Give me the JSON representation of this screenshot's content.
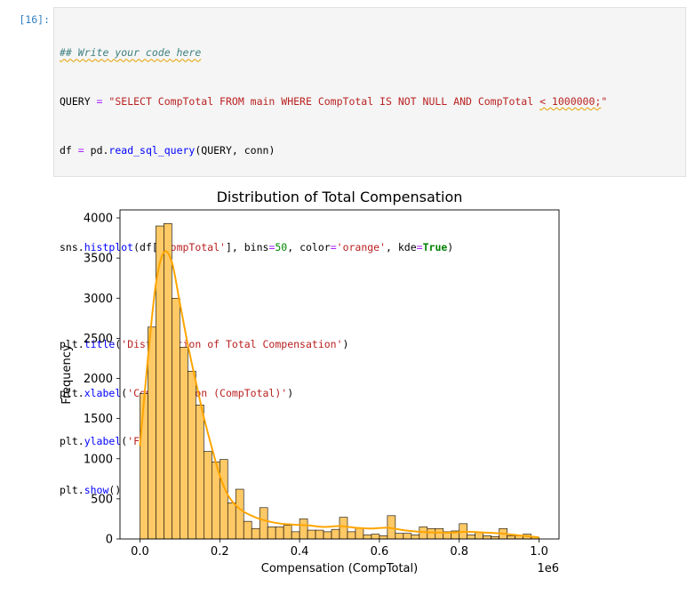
{
  "cell": {
    "prompt": "[16]:",
    "code_lines": [
      "## Write your code here",
      "QUERY = \"SELECT CompTotal FROM main WHERE CompTotal IS NOT NULL AND CompTotal < 1000000;\"",
      "df = pd.read_sql_query(QUERY, conn)",
      "",
      "sns.histplot(df['CompTotal'], bins=50, color='orange', kde=True)",
      "",
      "plt.title('Distribution of Total Compensation')",
      "plt.xlabel('Compensation (CompTotal)')",
      "plt.ylabel('Frequency')",
      "plt.show()"
    ]
  },
  "chart_data": {
    "type": "bar",
    "title": "Distribution of Total Compensation",
    "xlabel": "Compensation (CompTotal)",
    "ylabel": "Frequency",
    "x_offset_label": "1e6",
    "xlim": [
      -0.05,
      1.05
    ],
    "ylim": [
      0,
      4100
    ],
    "x_ticks": [
      0.0,
      0.2,
      0.4,
      0.6,
      0.8,
      1.0
    ],
    "x_tick_labels": [
      "0.0",
      "0.2",
      "0.4",
      "0.6",
      "0.8",
      "1.0"
    ],
    "y_ticks": [
      0,
      500,
      1000,
      1500,
      2000,
      2500,
      3000,
      3500,
      4000
    ],
    "y_tick_labels": [
      "0",
      "500",
      "1000",
      "1500",
      "2000",
      "2500",
      "3000",
      "3500",
      "4000"
    ],
    "bin_start": 0.0,
    "bin_width": 0.02,
    "values": [
      1810,
      2640,
      3900,
      3930,
      3000,
      2390,
      2090,
      1670,
      1090,
      960,
      990,
      450,
      620,
      220,
      130,
      390,
      150,
      150,
      170,
      90,
      250,
      110,
      110,
      90,
      120,
      270,
      90,
      140,
      50,
      60,
      40,
      290,
      70,
      70,
      50,
      150,
      130,
      130,
      90,
      100,
      190,
      50,
      80,
      40,
      30,
      130,
      40,
      40,
      60,
      20
    ],
    "kde": {
      "x": [
        0.0,
        0.02,
        0.04,
        0.06,
        0.08,
        0.1,
        0.12,
        0.14,
        0.16,
        0.18,
        0.2,
        0.22,
        0.24,
        0.26,
        0.28,
        0.3,
        0.34,
        0.38,
        0.42,
        0.46,
        0.5,
        0.54,
        0.58,
        0.62,
        0.66,
        0.7,
        0.74,
        0.78,
        0.82,
        0.86,
        0.9,
        0.94,
        0.98,
        1.0
      ],
      "y": [
        1160,
        2250,
        3180,
        3570,
        3450,
        2940,
        2420,
        1960,
        1520,
        1140,
        790,
        550,
        420,
        340,
        290,
        250,
        200,
        180,
        170,
        150,
        160,
        140,
        130,
        140,
        110,
        90,
        80,
        80,
        90,
        80,
        70,
        50,
        30,
        20
      ]
    },
    "colors": {
      "bar_fill": "#ffc966",
      "bar_edge": "#000000",
      "kde_line": "#ffa500"
    }
  }
}
